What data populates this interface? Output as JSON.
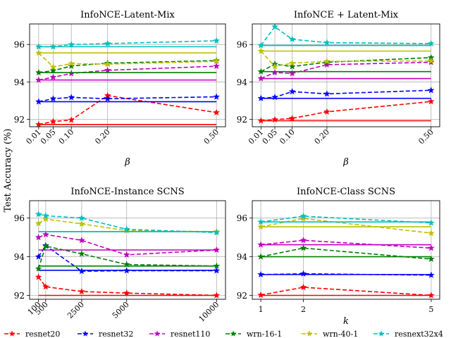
{
  "figure": {
    "ylabel": "Test Accuracy (%)",
    "legend": {
      "placement": "bottom",
      "entries": [
        {
          "name": "resnet20",
          "color": "#ff0000"
        },
        {
          "name": "resnet32",
          "color": "#0000ff"
        },
        {
          "name": "resnet110",
          "color": "#bf00bf"
        },
        {
          "name": "wrn-16-1",
          "color": "#007f00"
        },
        {
          "name": "wrn-40-1",
          "color": "#bfbf00"
        },
        {
          "name": "resnext32x4",
          "color": "#00bfbf"
        }
      ]
    }
  },
  "chart_data": [
    {
      "type": "line",
      "title": "InfoNCE-Latent-Mix",
      "xlabel": "β",
      "x": [
        0.01,
        0.05,
        0.1,
        0.2,
        0.5
      ],
      "xticks": [
        0.01,
        0.05,
        0.1,
        0.2,
        0.5
      ],
      "xtick_labels": [
        "0.01",
        "0.05",
        "0.10",
        "0.20",
        "0.50"
      ],
      "xlim": [
        -0.015,
        0.525
      ],
      "ylim": [
        91.6,
        97.1
      ],
      "yticks": [
        92,
        94,
        96
      ],
      "ytick_labels": [
        "92",
        "94",
        "96"
      ],
      "grid": true,
      "series": [
        {
          "name": "resnet20",
          "values": [
            91.72,
            91.88,
            91.96,
            93.27,
            92.36
          ],
          "baseline": 91.72
        },
        {
          "name": "resnet32",
          "values": [
            92.94,
            93.1,
            93.17,
            93.1,
            93.2
          ],
          "baseline": 92.94
        },
        {
          "name": "resnet110",
          "values": [
            94.1,
            94.25,
            94.45,
            94.62,
            94.84
          ],
          "baseline": 94.1
        },
        {
          "name": "wrn-16-1",
          "values": [
            94.5,
            94.6,
            94.85,
            95.0,
            95.14
          ],
          "baseline": 94.5
        },
        {
          "name": "wrn-40-1",
          "values": [
            95.55,
            94.8,
            94.98,
            94.95,
            95.1
          ],
          "baseline": 95.55
        },
        {
          "name": "resnext32x4",
          "values": [
            95.88,
            95.88,
            96.0,
            96.05,
            96.2
          ],
          "baseline": 95.88
        }
      ]
    },
    {
      "type": "line",
      "title": "InfoNCE + Latent-Mix",
      "xlabel": "β",
      "x": [
        0.01,
        0.05,
        0.1,
        0.2,
        0.5
      ],
      "xticks": [
        0.01,
        0.05,
        0.1,
        0.2,
        0.5
      ],
      "xtick_labels": [
        "0.01",
        "0.05",
        "0.10",
        "0.20",
        "0.50"
      ],
      "xlim": [
        -0.015,
        0.525
      ],
      "ylim": [
        91.6,
        97.1
      ],
      "yticks": [
        92,
        94,
        96
      ],
      "ytick_labels": [
        "92",
        "94",
        "96"
      ],
      "grid": true,
      "series": [
        {
          "name": "resnet20",
          "values": [
            91.92,
            91.98,
            92.05,
            92.4,
            92.95
          ],
          "baseline": 91.92
        },
        {
          "name": "resnet32",
          "values": [
            93.12,
            93.18,
            93.48,
            93.36,
            93.55
          ],
          "baseline": 93.12
        },
        {
          "name": "resnet110",
          "values": [
            94.18,
            94.5,
            94.45,
            94.92,
            95.05
          ],
          "baseline": 94.18
        },
        {
          "name": "wrn-16-1",
          "values": [
            94.55,
            94.95,
            94.82,
            95.05,
            95.3
          ],
          "baseline": 94.55
        },
        {
          "name": "wrn-40-1",
          "values": [
            95.65,
            94.82,
            95.0,
            95.1,
            95.12
          ],
          "baseline": 95.65
        },
        {
          "name": "resnext32x4",
          "values": [
            95.95,
            96.95,
            96.28,
            96.1,
            96.05
          ],
          "baseline": 95.95
        }
      ]
    },
    {
      "type": "line",
      "title": "InfoNCE-Instance SCNS",
      "xlabel": "",
      "x": [
        100,
        500,
        2500,
        5000,
        10000
      ],
      "xticks": [
        100,
        500,
        2500,
        5000,
        10000
      ],
      "xtick_labels": [
        "100",
        "500",
        "2500",
        "5000",
        "10000"
      ],
      "xlim": [
        -395,
        10495
      ],
      "ylim": [
        91.8,
        96.9
      ],
      "yticks": [
        92,
        94,
        96
      ],
      "ytick_labels": [
        "92",
        "94",
        "96"
      ],
      "grid": true,
      "series": [
        {
          "name": "resnet20",
          "values": [
            92.95,
            92.45,
            92.2,
            92.12,
            92.0
          ],
          "baseline": 92.0
        },
        {
          "name": "resnet32",
          "values": [
            94.0,
            94.58,
            93.25,
            93.28,
            93.28
          ],
          "baseline": 93.3
        },
        {
          "name": "resnet110",
          "values": [
            95.0,
            95.15,
            94.85,
            94.1,
            94.35
          ],
          "baseline": 94.35
        },
        {
          "name": "wrn-16-1",
          "values": [
            93.38,
            94.55,
            94.15,
            93.6,
            93.52
          ],
          "baseline": 93.52
        },
        {
          "name": "wrn-40-1",
          "values": [
            95.72,
            95.95,
            95.7,
            95.35,
            95.3
          ],
          "baseline": 95.3
        },
        {
          "name": "resnext32x4",
          "values": [
            96.2,
            96.12,
            96.0,
            95.42,
            95.25
          ],
          "baseline": 95.3
        }
      ]
    },
    {
      "type": "line",
      "title": "InfoNCE-Class SCNS",
      "xlabel": "k",
      "x": [
        1,
        2,
        5
      ],
      "xticks": [
        1,
        2,
        5
      ],
      "xtick_labels": [
        "1",
        "2",
        "5"
      ],
      "xlim": [
        0.8,
        5.2
      ],
      "ylim": [
        91.8,
        96.9
      ],
      "yticks": [
        92,
        94,
        96
      ],
      "ytick_labels": [
        "92",
        "94",
        "96"
      ],
      "grid": true,
      "series": [
        {
          "name": "resnet20",
          "values": [
            92.02,
            92.42,
            92.0
          ],
          "baseline": 92.0
        },
        {
          "name": "resnet32",
          "values": [
            93.08,
            93.12,
            93.05
          ],
          "baseline": 93.08
        },
        {
          "name": "resnet110",
          "values": [
            94.62,
            94.85,
            94.45
          ],
          "baseline": 94.62
        },
        {
          "name": "wrn-16-1",
          "values": [
            94.0,
            94.45,
            93.88
          ],
          "baseline": 94.0
        },
        {
          "name": "wrn-40-1",
          "values": [
            95.55,
            95.98,
            95.22
          ],
          "baseline": 95.55
        },
        {
          "name": "resnext32x4",
          "values": [
            95.8,
            96.1,
            95.75
          ],
          "baseline": 95.8
        }
      ]
    }
  ]
}
